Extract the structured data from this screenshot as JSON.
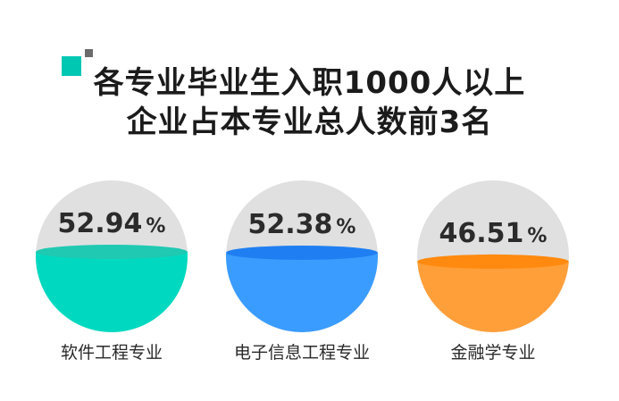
{
  "title": {
    "line1": "各专业毕业生入职1000人以上",
    "line2": "企业占本专业总人数前3名"
  },
  "colors": {
    "background_disc": "#e0e0e0",
    "title_text": "#1b1b1b",
    "label_text": "#2a2a2a",
    "deco_teal": "#00c7b2",
    "deco_gray": "#6b6b6b"
  },
  "chart_data": {
    "type": "pie",
    "style": "liquid-fill circles",
    "categories": [
      "软件工程专业",
      "电子信息工程专业",
      "金融学专业"
    ],
    "values": [
      52.94,
      52.38,
      46.51
    ],
    "value_labels": [
      "52.94%",
      "52.38%",
      "46.51%"
    ],
    "unit": "%",
    "series_colors": [
      {
        "fill": "#00d9c0",
        "top": "#1fc9b2"
      },
      {
        "fill": "#3a9cff",
        "top": "#1f7ff2"
      },
      {
        "fill": "#ff9f3a",
        "top": "#ff8a0f"
      }
    ]
  }
}
